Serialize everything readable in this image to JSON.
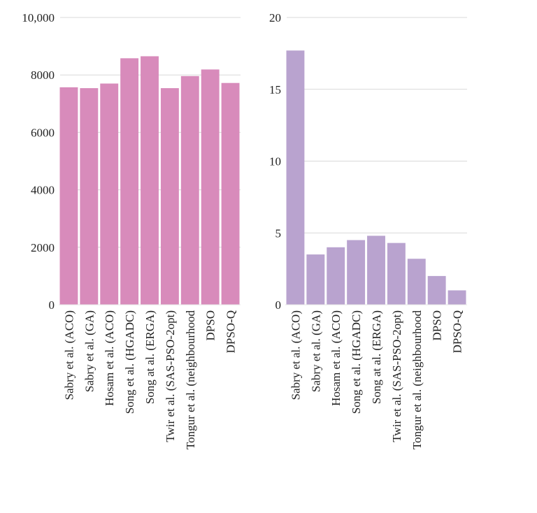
{
  "colors": {
    "left_bars": "#d88bbb",
    "right_bars": "#b9a3cf",
    "grid": "#d9d9d9",
    "text": "#222222"
  },
  "chart_data": [
    {
      "type": "bar",
      "title": "",
      "xlabel": "",
      "ylabel": "",
      "grid": true,
      "categories": [
        "Sabry et al. (ACO)",
        "Sabry et al. (GA)",
        "Hosam et al. (ACO)",
        "Song et al. (HGADC)",
        "Song at al. (ERGA)",
        "Twir et al. (SAS-PSO-2opt)",
        "Tongur et al. (neighbourhood",
        "DPSO",
        "DPSO-Q"
      ],
      "values": [
        7570,
        7540,
        7700,
        8580,
        8650,
        7540,
        7960,
        8190,
        7720
      ],
      "ylim": [
        0,
        10000
      ],
      "yticks": [
        0,
        2000,
        4000,
        6000,
        8000,
        10000
      ],
      "ytick_labels": [
        "0",
        "2000",
        "4000",
        "6000",
        "8000",
        "10,000"
      ]
    },
    {
      "type": "bar",
      "title": "",
      "xlabel": "",
      "ylabel": "",
      "grid": true,
      "categories": [
        "Sabry et al. (ACO)",
        "Sabry et al. (GA)",
        "Hosam et al. (ACO)",
        "Song et al. (HGADC)",
        "Song at al. (ERGA)",
        "Twir et al. (SAS-PSO-2opt)",
        "Tongur et al. (neighbourhood",
        "DPSO",
        "DPSO-Q"
      ],
      "values": [
        17.7,
        3.5,
        4.0,
        4.5,
        4.8,
        4.3,
        3.2,
        2.0,
        1.0
      ],
      "ylim": [
        0,
        20
      ],
      "yticks": [
        0,
        5,
        10,
        15,
        20
      ],
      "ytick_labels": [
        "0",
        "5",
        "10",
        "15",
        "20"
      ]
    }
  ]
}
